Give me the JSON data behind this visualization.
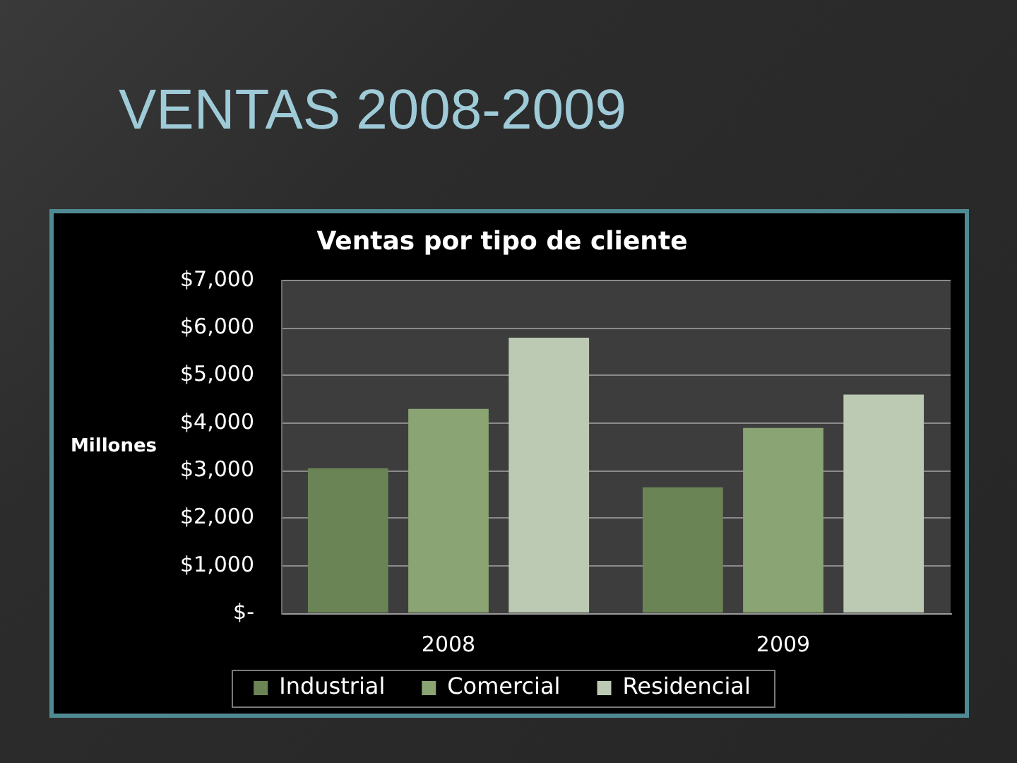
{
  "chart_data": {
    "type": "bar",
    "title": "VENTAS 2008-2009",
    "subtitle": "Ventas por tipo de cliente",
    "ylabel": "Millones",
    "categories": [
      "2008",
      "2009"
    ],
    "series": [
      {
        "name": "Industrial",
        "color": "#6b8456",
        "values": [
          3050,
          2650
        ]
      },
      {
        "name": "Comercial",
        "color": "#8ba474",
        "values": [
          4300,
          3900
        ]
      },
      {
        "name": "Residencial",
        "color": "#bdcab3",
        "values": [
          5800,
          4600
        ]
      }
    ],
    "ylim": [
      0,
      7000
    ],
    "yticks": [
      {
        "value": 0,
        "label": "$-"
      },
      {
        "value": 1000,
        "label": "$1,000"
      },
      {
        "value": 2000,
        "label": "$2,000"
      },
      {
        "value": 3000,
        "label": "$3,000"
      },
      {
        "value": 4000,
        "label": "$4,000"
      },
      {
        "value": 5000,
        "label": "$5,000"
      },
      {
        "value": 6000,
        "label": "$6,000"
      },
      {
        "value": 7000,
        "label": "$7,000"
      }
    ],
    "grid": "y",
    "legend": "bottom"
  }
}
